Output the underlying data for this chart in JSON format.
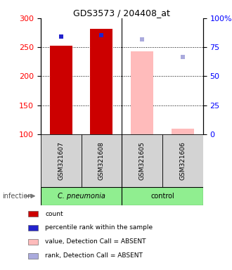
{
  "title": "GDS3573 / 204408_at",
  "samples": [
    "GSM321607",
    "GSM321608",
    "GSM321605",
    "GSM321606"
  ],
  "bar_values": [
    253,
    281,
    243,
    110
  ],
  "bar_colors": [
    "#cc0000",
    "#cc0000",
    "#ffbbbb",
    "#ffbbbb"
  ],
  "rank_values": [
    268,
    270,
    263,
    233
  ],
  "rank_colors": [
    "#2222cc",
    "#2222cc",
    "#aaaadd",
    "#aaaadd"
  ],
  "rank_is_absent": [
    false,
    false,
    true,
    true
  ],
  "ylim_left": [
    100,
    300
  ],
  "ylim_right": [
    0,
    100
  ],
  "yticks_left": [
    100,
    150,
    200,
    250,
    300
  ],
  "yticks_right": [
    0,
    25,
    50,
    75,
    100
  ],
  "ytick_labels_right": [
    "0",
    "25",
    "50",
    "75",
    "100%"
  ],
  "dotted_lines": [
    150,
    200,
    250
  ],
  "legend_items": [
    {
      "label": "count",
      "color": "#cc0000"
    },
    {
      "label": "percentile rank within the sample",
      "color": "#2222cc"
    },
    {
      "label": "value, Detection Call = ABSENT",
      "color": "#ffbbbb"
    },
    {
      "label": "rank, Detection Call = ABSENT",
      "color": "#aaaadd"
    }
  ],
  "infection_label": "infection",
  "cpneumonia_label": "C. pneumonia",
  "control_label": "control",
  "group1_color": "#90ee90",
  "group2_color": "#90ee90",
  "sample_bg_color": "#d3d3d3"
}
